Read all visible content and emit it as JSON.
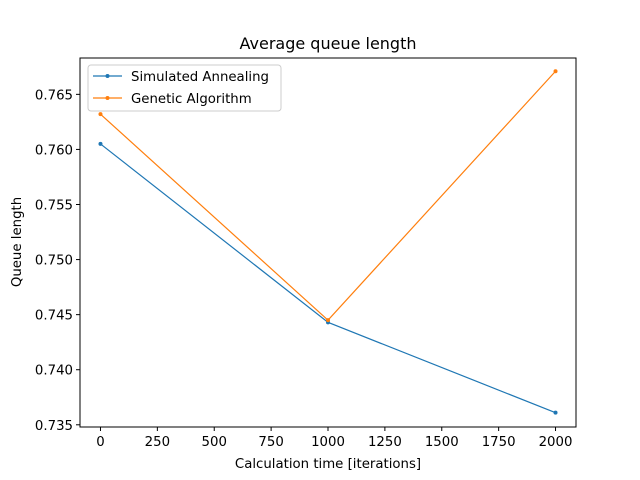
{
  "chart_data": {
    "type": "line",
    "title": "Average queue length",
    "xlabel": "Calculation time [iterations]",
    "ylabel": "Queue length",
    "xlim": [
      -90,
      2090
    ],
    "ylim": [
      0.7348,
      0.7683
    ],
    "xticks": [
      0,
      250,
      500,
      750,
      1000,
      1250,
      1500,
      1750,
      2000
    ],
    "yticks": [
      0.735,
      0.74,
      0.745,
      0.75,
      0.755,
      0.76,
      0.765
    ],
    "ytick_labels": [
      "0.735",
      "0.740",
      "0.745",
      "0.750",
      "0.755",
      "0.760",
      "0.765"
    ],
    "grid": false,
    "legend_position": "upper-left",
    "series": [
      {
        "name": "Simulated Annealing",
        "color": "#1f77b4",
        "x": [
          0,
          1000,
          2000
        ],
        "y": [
          0.7605,
          0.7443,
          0.7361
        ]
      },
      {
        "name": "Genetic Algorithm",
        "color": "#ff7f0e",
        "x": [
          0,
          1000,
          2000
        ],
        "y": [
          0.7632,
          0.7445,
          0.7671
        ]
      }
    ]
  }
}
